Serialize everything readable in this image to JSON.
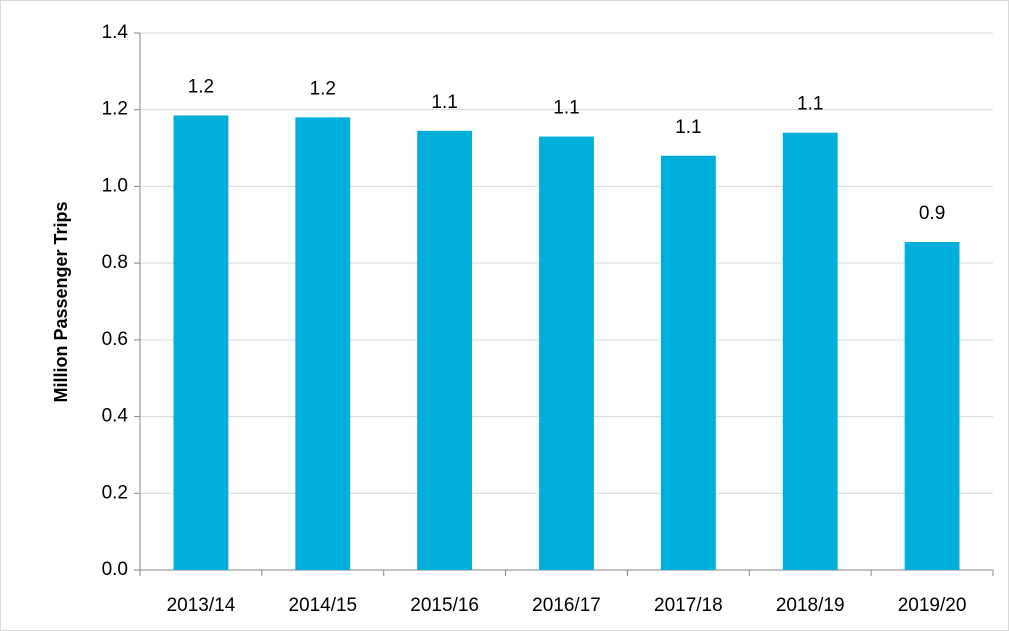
{
  "chart_data": {
    "type": "bar",
    "y_label": "Million Passenger Trips",
    "categories": [
      "2013/14",
      "2014/15",
      "2015/16",
      "2016/17",
      "2017/18",
      "2018/19",
      "2019/20"
    ],
    "values": [
      1.185,
      1.18,
      1.145,
      1.13,
      1.08,
      1.14,
      0.855
    ],
    "value_labels": [
      "1.2",
      "1.2",
      "1.1",
      "1.1",
      "1.1",
      "1.1",
      "0.9"
    ],
    "color": "#00aedb",
    "ylim": [
      0,
      1.4
    ],
    "yticks": [
      {
        "value": 0,
        "label": "0.0"
      },
      0.2,
      0.4,
      0.6,
      0.8,
      {
        "value": 1,
        "label": "1.0"
      },
      1.2,
      1.4
    ],
    "grid": true
  }
}
